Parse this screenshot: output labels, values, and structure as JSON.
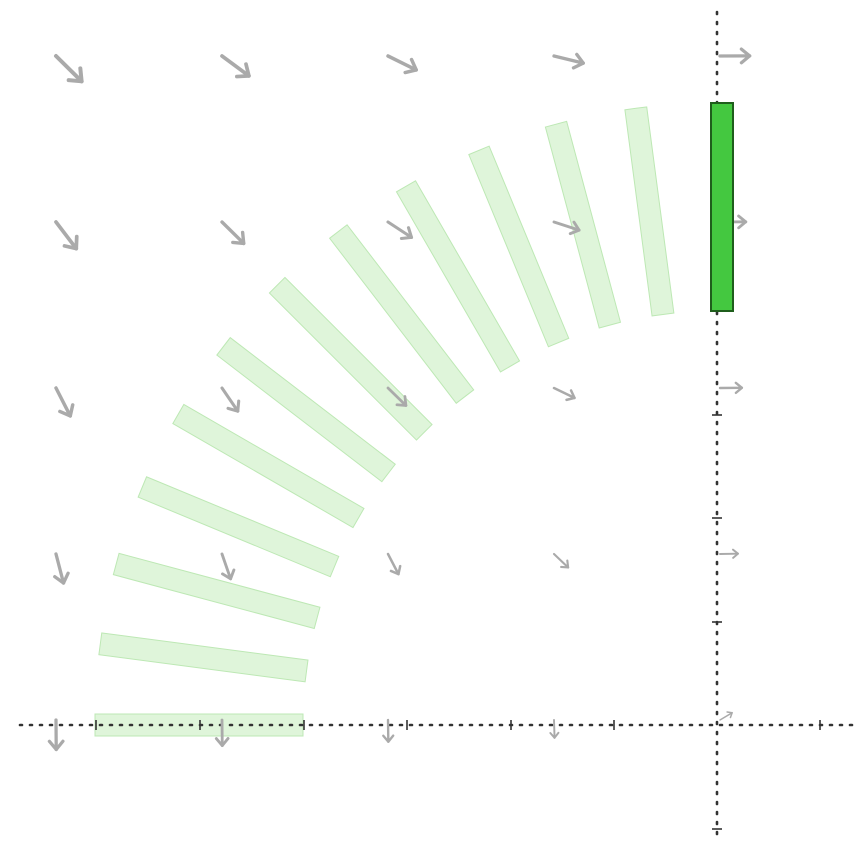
{
  "figure": {
    "description_free": true,
    "colors": {
      "axis": "#333333",
      "ghost_fill": "#c9efc2",
      "ghost_stroke": "#bde8b4",
      "active_fill": "#44c840",
      "active_stroke": "#1f5e1c",
      "vector_arrow": "#aaaaaa"
    },
    "rotation_sequence": {
      "ghost_count": 12,
      "start_angle_deg": 0,
      "end_angle_deg": 90,
      "active_angle_deg": 90
    },
    "vector_field": {
      "columns": 5,
      "rows": 5,
      "icon": "arrow-icon"
    }
  }
}
